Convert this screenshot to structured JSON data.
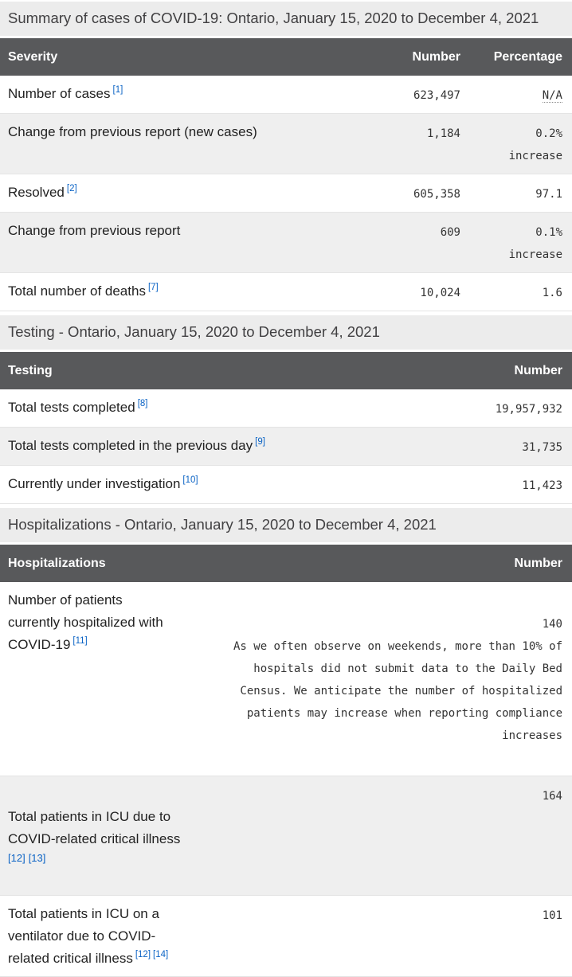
{
  "page": {
    "title": "Summary of cases of COVID-19: Ontario, January 15, 2020 to December 4, 2021"
  },
  "colors": {
    "table_header_bg": "#58595b",
    "section_band_bg": "#ececec",
    "alt_row_bg": "#efefef",
    "footnote_link": "#0b63c5",
    "label_text": "#222222",
    "mono_text": "#333333"
  },
  "severity_table": {
    "columns": [
      "Severity",
      "Number",
      "Percentage"
    ],
    "rows": [
      {
        "label": "Number of cases",
        "refs": [
          "[1]"
        ],
        "number": "623,497",
        "percentage": "N/A"
      },
      {
        "label": "Change from previous report (new cases)",
        "refs": [],
        "number": "1,184",
        "percentage": "0.2%\nincrease"
      },
      {
        "label": "Resolved",
        "refs": [
          "[2]"
        ],
        "number": "605,358",
        "percentage": "97.1"
      },
      {
        "label": "Change from previous report",
        "refs": [],
        "number": "609",
        "percentage": "0.1%\nincrease"
      },
      {
        "label": "Total number of deaths",
        "refs": [
          "[7]"
        ],
        "number": "10,024",
        "percentage": "1.6"
      }
    ]
  },
  "testing_section": {
    "heading": "Testing - Ontario, January 15, 2020 to December 4, 2021",
    "columns": [
      "Testing",
      "Number"
    ],
    "rows": [
      {
        "label": "Total tests completed",
        "refs": [
          "[8]"
        ],
        "number": "19,957,932"
      },
      {
        "label": "Total tests completed in the previous day",
        "refs": [
          "[9]"
        ],
        "number": "31,735"
      },
      {
        "label": "Currently under investigation",
        "refs": [
          "[10]"
        ],
        "number": "11,423"
      }
    ]
  },
  "hospitalizations_section": {
    "heading": "Hospitalizations - Ontario, January 15, 2020 to December 4, 2021",
    "columns": [
      "Hospitalizations",
      "Number"
    ],
    "rows": [
      {
        "label": "Number of patients\ncurrently hospitalized with\nCOVID-19",
        "refs": [
          "[11]"
        ],
        "number": "140",
        "note": "As we often observe on weekends, more than 10% of\nhospitals did not submit data to the Daily Bed\nCensus. We anticipate the number of hospitalized\npatients may increase when reporting compliance\nincreases"
      },
      {
        "label": "Total patients in ICU due to\nCOVID-related critical illness",
        "refs": [
          "[12]",
          "[13]"
        ],
        "number": "164",
        "refs_block": true
      },
      {
        "label": "Total patients in ICU on a\nventilator due to COVID-\nrelated critical illness",
        "refs": [
          "[12]",
          "[14]"
        ],
        "number": "101"
      }
    ]
  }
}
